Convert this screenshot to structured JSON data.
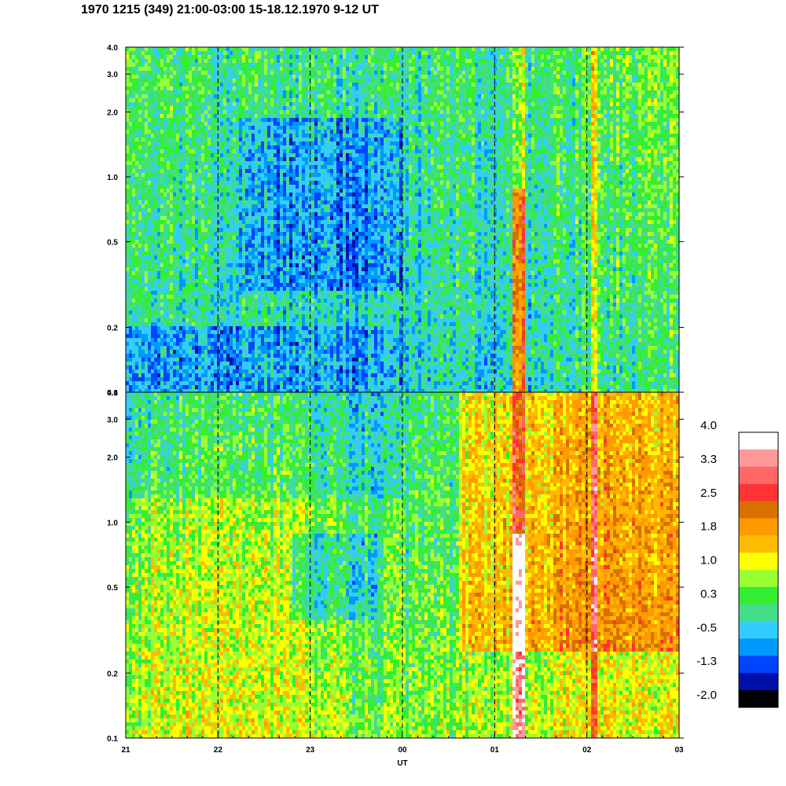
{
  "title": "1970 1215 (349) 21:00-03:00 15-18.12.1970  9-12 UT",
  "chart_data": {
    "type": "heatmap",
    "xlabel": "UT",
    "x_ticks": [
      "21",
      "22",
      "23",
      "00",
      "01",
      "02",
      "03"
    ],
    "x_range_hours": [
      21,
      27
    ],
    "panels": [
      {
        "name": "top",
        "y_scale": "log",
        "ylim": [
          0.1,
          4.0
        ],
        "y_ticks": [
          0.1,
          0.2,
          0.5,
          1.0,
          2.0,
          3.0,
          4.0
        ],
        "y_tick_labels": [
          "0.1",
          "0.2",
          "0.5",
          "1.0",
          "2.0",
          "3.0",
          "4.0"
        ]
      },
      {
        "name": "bottom",
        "y_scale": "log",
        "ylim": [
          0.1,
          4.0
        ],
        "y_ticks": [
          0.1,
          0.2,
          0.5,
          1.0,
          2.0,
          3.0,
          4.0
        ],
        "y_tick_labels": [
          "0.1",
          "0.2",
          "0.5",
          "1.0",
          "2.0",
          "3.0",
          "4.0"
        ]
      }
    ],
    "colorbar": {
      "labels": [
        "4.0",
        "3.3",
        "2.5",
        "1.8",
        "1.0",
        "0.3",
        "-0.5",
        "-1.3",
        "-2.0"
      ],
      "colors": [
        "#ffffff",
        "#ff9999",
        "#ff6666",
        "#ff3333",
        "#d87000",
        "#ff9900",
        "#ffbb00",
        "#ffff00",
        "#99ff33",
        "#33ee33",
        "#44dd88",
        "#33ccff",
        "#0099ff",
        "#0044ff",
        "#0011aa",
        "#000000"
      ]
    },
    "grid": "dashed vertical lines at each hour"
  }
}
